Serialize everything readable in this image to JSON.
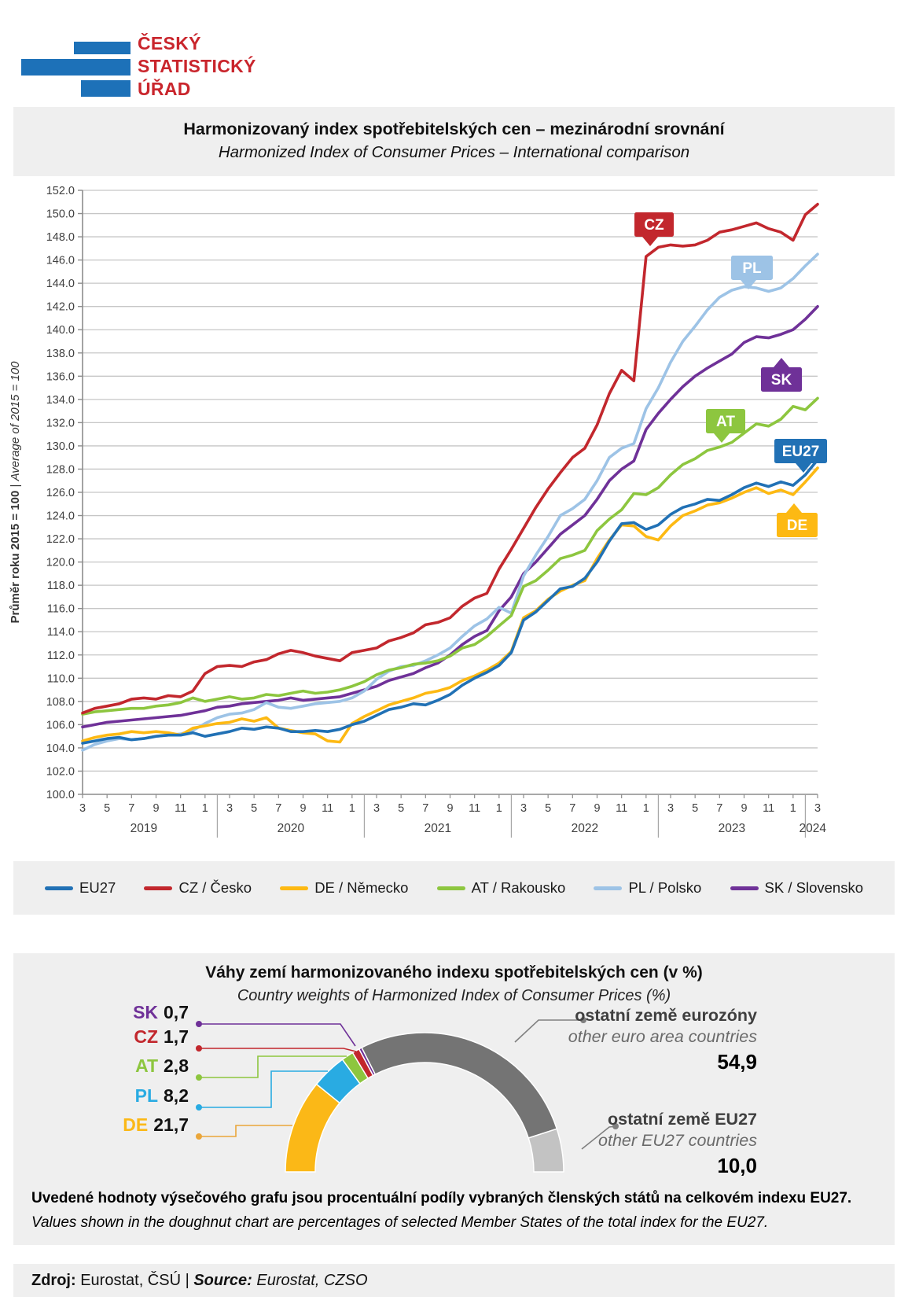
{
  "logo": {
    "line1": "ČESKÝ",
    "line2": "STATISTICKÝ",
    "line3": "ÚŘAD",
    "bar_color": "#1D71B8",
    "text_color": "#C9252C"
  },
  "source_line": {
    "label_cs": "Zdroj:",
    "text_cs": " Eurostat, ČSÚ | ",
    "label_en": "Source:",
    "text_en": " Eurostat, CZSO"
  },
  "chart_data": [
    {
      "type": "line",
      "title": "Harmonizovaný index spotřebitelských cen – mezinárodní srovnání",
      "subtitle": "Harmonized Index of Consumer Prices – International comparison",
      "ylabel_cs": "Průměr roku 2015 = 100",
      "ylabel_sep": " | ",
      "ylabel_en": "Average of 2015 = 100",
      "ylim": [
        100,
        152
      ],
      "y_step": 2,
      "grid": true,
      "legend_position": "bottom",
      "x": [
        "3/2019",
        "4/2019",
        "5/2019",
        "6/2019",
        "7/2019",
        "8/2019",
        "9/2019",
        "10/2019",
        "11/2019",
        "12/2019",
        "1/2020",
        "2/2020",
        "3/2020",
        "4/2020",
        "5/2020",
        "6/2020",
        "7/2020",
        "8/2020",
        "9/2020",
        "10/2020",
        "11/2020",
        "12/2020",
        "1/2021",
        "2/2021",
        "3/2021",
        "4/2021",
        "5/2021",
        "6/2021",
        "7/2021",
        "8/2021",
        "9/2021",
        "10/2021",
        "11/2021",
        "12/2021",
        "1/2022",
        "2/2022",
        "3/2022",
        "4/2022",
        "5/2022",
        "6/2022",
        "7/2022",
        "8/2022",
        "9/2022",
        "10/2022",
        "11/2022",
        "12/2022",
        "1/2023",
        "2/2023",
        "3/2023",
        "4/2023",
        "5/2023",
        "6/2023",
        "7/2023",
        "8/2023",
        "9/2023",
        "10/2023",
        "11/2023",
        "12/2023",
        "1/2024",
        "2/2024",
        "3/2024"
      ],
      "x_tick_every": 2,
      "x_year_labels": [
        {
          "label": "2019",
          "center": 5
        },
        {
          "label": "2020",
          "center": 17
        },
        {
          "label": "2021",
          "center": 29
        },
        {
          "label": "2022",
          "center": 41
        },
        {
          "label": "2023",
          "center": 53
        },
        {
          "label": "2024",
          "center": 59.6
        }
      ],
      "x_separators": [
        11,
        23,
        35,
        47,
        59
      ],
      "series": [
        {
          "name": "EU27",
          "legend": "EU27",
          "color": "#2171B5",
          "callout": "EU27",
          "values": [
            104.4,
            104.6,
            104.8,
            104.9,
            104.7,
            104.8,
            105.0,
            105.1,
            105.1,
            105.3,
            105.0,
            105.2,
            105.4,
            105.7,
            105.6,
            105.8,
            105.7,
            105.4,
            105.4,
            105.5,
            105.4,
            105.6,
            106.0,
            106.3,
            106.8,
            107.3,
            107.5,
            107.8,
            107.7,
            108.1,
            108.6,
            109.4,
            110.0,
            110.5,
            111.1,
            112.2,
            115.0,
            115.7,
            116.7,
            117.7,
            117.9,
            118.6,
            120.0,
            121.8,
            123.3,
            123.4,
            122.8,
            123.2,
            124.1,
            124.7,
            125.0,
            125.4,
            125.3,
            125.8,
            126.4,
            126.8,
            126.5,
            126.9,
            126.6,
            127.5,
            128.8
          ]
        },
        {
          "name": "CZ",
          "legend": "CZ / Česko",
          "color": "#C2272D",
          "callout": "CZ",
          "values": [
            107.0,
            107.4,
            107.6,
            107.8,
            108.2,
            108.3,
            108.2,
            108.5,
            108.4,
            108.9,
            110.4,
            111.0,
            111.1,
            111.0,
            111.4,
            111.6,
            112.1,
            112.4,
            112.2,
            111.9,
            111.7,
            111.5,
            112.2,
            112.4,
            112.6,
            113.2,
            113.5,
            113.9,
            114.6,
            114.8,
            115.2,
            116.2,
            116.9,
            117.3,
            119.4,
            121.1,
            122.9,
            124.7,
            126.3,
            127.7,
            129.0,
            129.8,
            131.8,
            134.5,
            136.5,
            135.6,
            146.3,
            147.1,
            147.3,
            147.2,
            147.3,
            147.7,
            148.4,
            148.6,
            148.9,
            149.2,
            148.7,
            148.4,
            147.7,
            149.9,
            150.8
          ]
        },
        {
          "name": "DE",
          "legend": "DE / Německo",
          "color": "#FDB913",
          "callout": "DE",
          "values": [
            104.6,
            104.9,
            105.1,
            105.2,
            105.4,
            105.3,
            105.4,
            105.3,
            105.1,
            105.7,
            105.9,
            106.1,
            106.2,
            106.5,
            106.3,
            106.6,
            105.7,
            105.5,
            105.3,
            105.2,
            104.6,
            104.5,
            106.1,
            106.7,
            107.2,
            107.7,
            108.0,
            108.3,
            108.7,
            108.9,
            109.2,
            109.8,
            110.2,
            110.7,
            111.3,
            112.3,
            115.2,
            115.8,
            116.8,
            117.5,
            118.0,
            118.4,
            120.3,
            121.9,
            123.2,
            123.1,
            122.2,
            121.9,
            123.1,
            124.0,
            124.4,
            124.9,
            125.1,
            125.5,
            126.0,
            126.4,
            125.9,
            126.2,
            125.8,
            126.9,
            128.1
          ]
        },
        {
          "name": "AT",
          "legend": "AT / Rakousko",
          "color": "#8DC63F",
          "callout": "AT",
          "values": [
            106.9,
            107.1,
            107.2,
            107.3,
            107.4,
            107.4,
            107.6,
            107.7,
            107.9,
            108.3,
            108.0,
            108.2,
            108.4,
            108.2,
            108.3,
            108.6,
            108.5,
            108.7,
            108.9,
            108.7,
            108.8,
            109.0,
            109.3,
            109.7,
            110.3,
            110.7,
            110.9,
            111.2,
            111.3,
            111.5,
            111.9,
            112.6,
            112.9,
            113.6,
            114.5,
            115.4,
            117.9,
            118.4,
            119.3,
            120.3,
            120.6,
            121.0,
            122.7,
            123.7,
            124.5,
            125.9,
            125.8,
            126.4,
            127.5,
            128.4,
            128.9,
            129.6,
            129.9,
            130.3,
            131.1,
            131.9,
            131.7,
            132.3,
            133.4,
            133.1,
            134.1
          ]
        },
        {
          "name": "PL",
          "legend": "PL / Polsko",
          "color": "#9DC3E6",
          "callout": "PL",
          "values": [
            103.8,
            104.3,
            104.6,
            104.8,
            104.7,
            104.8,
            105.0,
            105.1,
            105.2,
            105.5,
            106.1,
            106.6,
            106.9,
            107.0,
            107.3,
            107.9,
            107.5,
            107.4,
            107.6,
            107.8,
            107.9,
            108.0,
            108.3,
            108.9,
            109.9,
            110.6,
            111.0,
            111.1,
            111.5,
            112.0,
            112.6,
            113.6,
            114.5,
            115.1,
            116.1,
            115.6,
            118.8,
            120.6,
            122.2,
            124.0,
            124.6,
            125.4,
            127.0,
            129.0,
            129.8,
            130.2,
            133.2,
            135.0,
            137.2,
            139.0,
            140.3,
            141.7,
            142.8,
            143.4,
            143.7,
            143.6,
            143.3,
            143.6,
            144.4,
            145.5,
            146.5
          ]
        },
        {
          "name": "SK",
          "legend": "SK / Slovensko",
          "color": "#6F3198",
          "callout": "SK",
          "values": [
            105.8,
            106.0,
            106.2,
            106.3,
            106.4,
            106.5,
            106.6,
            106.7,
            106.8,
            107.0,
            107.2,
            107.5,
            107.6,
            107.8,
            107.9,
            108.0,
            108.1,
            108.3,
            108.1,
            108.2,
            108.3,
            108.4,
            108.7,
            109.0,
            109.3,
            109.8,
            110.1,
            110.4,
            110.9,
            111.3,
            112.0,
            112.9,
            113.6,
            114.1,
            115.8,
            117.0,
            119.0,
            120.0,
            121.2,
            122.4,
            123.2,
            124.0,
            125.4,
            127.0,
            128.0,
            128.7,
            131.4,
            132.8,
            134.0,
            135.1,
            136.0,
            136.7,
            137.3,
            137.9,
            138.9,
            139.4,
            139.3,
            139.6,
            140.0,
            140.9,
            142.0
          ]
        }
      ]
    },
    {
      "type": "doughnut-half",
      "title": "Váhy zemí harmonizovaného indexu spotřebitelských cen (v %)",
      "subtitle": "Country weights of Harmonized Index of Consumer Prices (%)",
      "segments": [
        {
          "id": "DE",
          "code": "DE",
          "value": 21.7,
          "display": "21,7",
          "color": "#FBB817",
          "leader_color": "#EAA63A"
        },
        {
          "id": "PL",
          "code": "PL",
          "value": 8.2,
          "display": "8,2",
          "color": "#29ABE2",
          "leader_color": "#29ABE2"
        },
        {
          "id": "AT",
          "code": "AT",
          "value": 2.8,
          "display": "2,8",
          "color": "#8DC63F",
          "leader_color": "#8DC63F"
        },
        {
          "id": "CZ",
          "code": "CZ",
          "value": 1.7,
          "display": "1,7",
          "color": "#C2272D",
          "leader_color": "#C2272D"
        },
        {
          "id": "SK",
          "code": "SK",
          "value": 0.7,
          "display": "0,7",
          "color": "#6F3198",
          "leader_color": "#6F3198"
        },
        {
          "id": "other_euro",
          "label_cs": "ostatní země eurozóny",
          "label_en": "other euro area countries",
          "value": 54.9,
          "display": "54,9",
          "color": "#747474",
          "leader_color": "#808080"
        },
        {
          "id": "other_eu27",
          "label_cs": "ostatní země EU27",
          "label_en": "other EU27 countries",
          "value": 10.0,
          "display": "10,0",
          "color": "#C3C3C3",
          "leader_color": "#808080"
        }
      ],
      "left_label_order": [
        "SK",
        "CZ",
        "AT",
        "PL",
        "DE"
      ],
      "note_cs": "Uvedené hodnoty výsečového grafu jsou procentuální podíly vybraných členských států na celkovém indexu EU27.",
      "note_en": "Values shown in the doughnut chart are percentages of selected Member States of the total index for the EU27."
    }
  ]
}
